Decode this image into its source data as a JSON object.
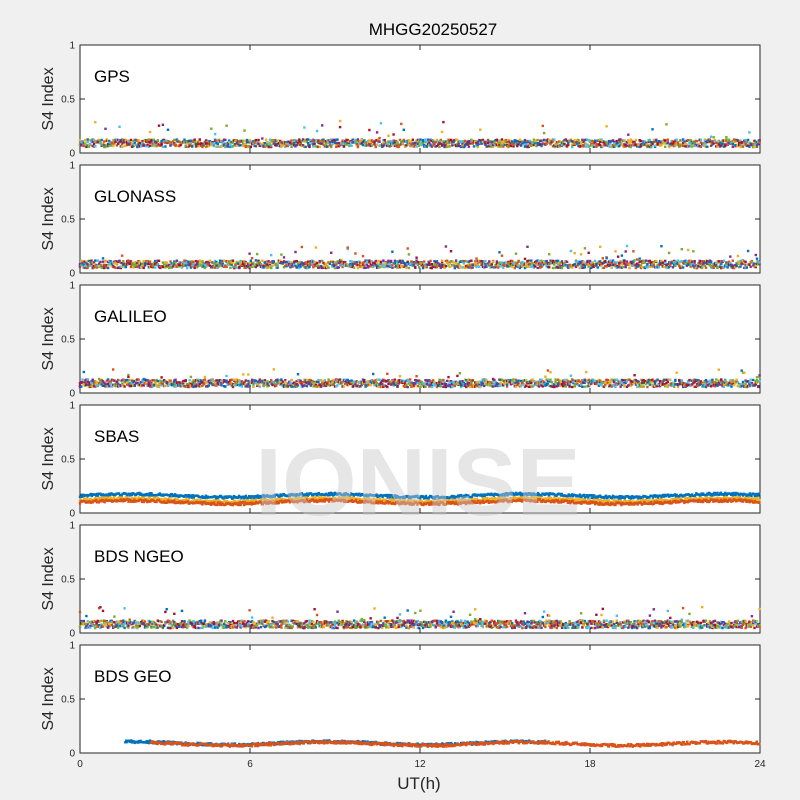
{
  "title": "MHGG20250527",
  "xlabel": "UT(h)",
  "watermark": "IONISE",
  "colors": [
    "#0072BD",
    "#D95319",
    "#EDB120",
    "#7E2F8E",
    "#77AC30",
    "#4DBEEE",
    "#A2142F"
  ],
  "chart_data": [
    {
      "type": "scatter",
      "label": "GPS",
      "ylabel": "S4 Index",
      "xlim": [
        0,
        24
      ],
      "ylim": [
        0,
        1
      ],
      "xticks": [
        "0",
        "6",
        "12",
        "18",
        "24"
      ],
      "yticks": [
        "0",
        "0.5",
        "1"
      ],
      "series_count": 7,
      "s4_baseline": 0.09,
      "s4_peak_max": 0.3
    },
    {
      "type": "scatter",
      "label": "GLONASS",
      "ylabel": "S4 Index",
      "xlim": [
        0,
        24
      ],
      "ylim": [
        0,
        1
      ],
      "xticks": [
        "0",
        "6",
        "12",
        "18",
        "24"
      ],
      "yticks": [
        "0",
        "0.5",
        "1"
      ],
      "series_count": 7,
      "s4_baseline": 0.08,
      "s4_peak_max": 0.25
    },
    {
      "type": "scatter",
      "label": "GALILEO",
      "ylabel": "S4 Index",
      "xlim": [
        0,
        24
      ],
      "ylim": [
        0,
        1
      ],
      "xticks": [
        "0",
        "6",
        "12",
        "18",
        "24"
      ],
      "yticks": [
        "0",
        "0.5",
        "1"
      ],
      "series_count": 7,
      "s4_baseline": 0.09,
      "s4_peak_max": 0.22
    },
    {
      "type": "scatter",
      "label": "SBAS",
      "ylabel": "S4 Index",
      "xlim": [
        0,
        24
      ],
      "ylim": [
        0,
        1
      ],
      "xticks": [
        "0",
        "6",
        "12",
        "18",
        "24"
      ],
      "yticks": [
        "0",
        "0.5",
        "1"
      ],
      "series": [
        {
          "color": "#0072BD",
          "level": 0.16
        },
        {
          "color": "#EDB120",
          "level": 0.12
        },
        {
          "color": "#D95319",
          "level": 0.1
        }
      ]
    },
    {
      "type": "scatter",
      "label": "BDS NGEO",
      "ylabel": "S4 Index",
      "xlim": [
        0,
        24
      ],
      "ylim": [
        0,
        1
      ],
      "xticks": [
        "0",
        "6",
        "12",
        "18",
        "24"
      ],
      "yticks": [
        "0",
        "0.5",
        "1"
      ],
      "series_count": 7,
      "s4_baseline": 0.08,
      "s4_peak_max": 0.24
    },
    {
      "type": "scatter",
      "label": "BDS GEO",
      "ylabel": "S4 Index",
      "xlim": [
        0,
        24
      ],
      "ylim": [
        0,
        1
      ],
      "xticks": [
        "0",
        "6",
        "12",
        "18",
        "24"
      ],
      "yticks": [
        "0",
        "0.5",
        "1"
      ],
      "series": [
        {
          "color": "#0072BD",
          "level": 0.09,
          "x_start": 1.6,
          "x_end": 16.5
        },
        {
          "color": "#D95319",
          "level": 0.085,
          "x_start": 2.5,
          "x_end": 24
        }
      ]
    }
  ]
}
